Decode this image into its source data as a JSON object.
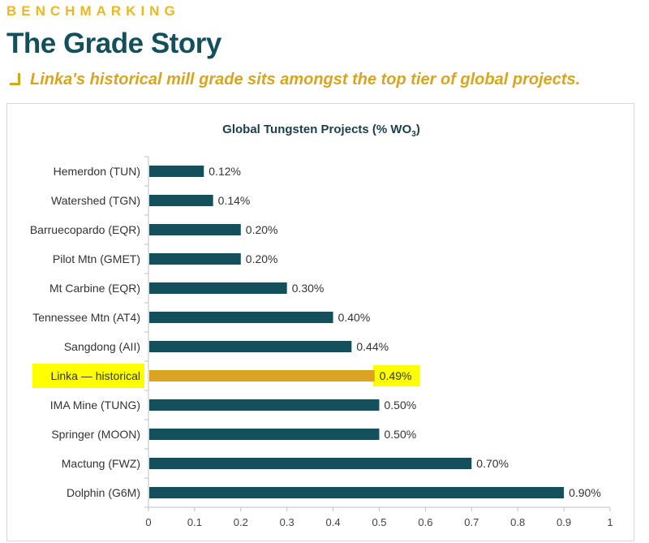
{
  "header": {
    "kicker": "BENCHMARKING",
    "title": "The Grade Story",
    "subtitle": "Linka's historical mill grade sits amongst the top tier of global projects."
  },
  "colors": {
    "bar": "#13505b",
    "highlight_bar": "#d9a520",
    "highlight_box": "#ffff00",
    "axis": "#bfbfbf"
  },
  "chart_data": {
    "type": "bar",
    "orientation": "horizontal",
    "title": "Global Tungsten Projects (% WO",
    "title_subscript": "3",
    "title_suffix": ")",
    "categories": [
      "Hemerdon (TUN)",
      "Watershed (TGN)",
      "Barruecopardo (EQR)",
      "Pilot Mtn (GMET)",
      "Mt Carbine (EQR)",
      "Tennessee Mtn (AT4)",
      "Sangdong (AII)",
      "Linka — historical",
      "IMA Mine (TUNG)",
      "Springer (MOON)",
      "Mactung (FWZ)",
      "Dolphin (G6M)"
    ],
    "values": [
      0.12,
      0.14,
      0.2,
      0.2,
      0.3,
      0.4,
      0.44,
      0.49,
      0.5,
      0.5,
      0.7,
      0.9
    ],
    "value_labels": [
      "0.12%",
      "0.14%",
      "0.20%",
      "0.20%",
      "0.30%",
      "0.40%",
      "0.44%",
      "0.49%",
      "0.50%",
      "0.50%",
      "0.70%",
      "0.90%"
    ],
    "highlight_category": "Linka — historical",
    "xlim": [
      0,
      1
    ],
    "xticks": [
      0,
      0.1,
      0.2,
      0.3,
      0.4,
      0.5,
      0.6,
      0.7,
      0.8,
      0.9,
      1
    ],
    "xtick_labels": [
      "0",
      "0.1",
      "0.2",
      "0.3",
      "0.4",
      "0.5",
      "0.6",
      "0.7",
      "0.8",
      "0.9",
      "1"
    ],
    "grid": false,
    "legend": "none"
  }
}
